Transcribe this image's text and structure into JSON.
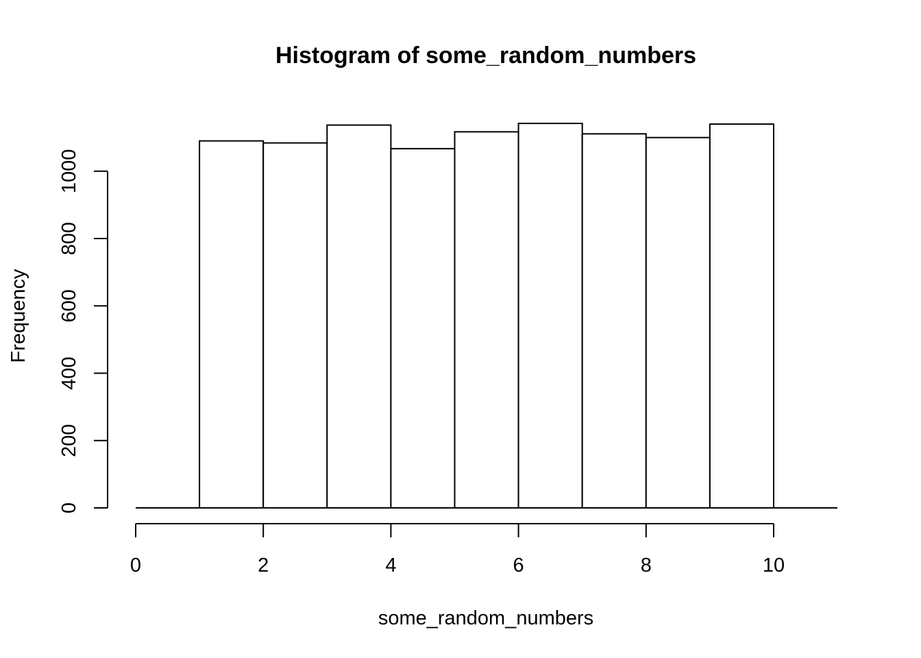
{
  "chart_data": {
    "type": "bar",
    "title": "Histogram of some_random_numbers",
    "xlabel": "some_random_numbers",
    "ylabel": "Frequency",
    "bins": [
      {
        "start": 1,
        "end": 2,
        "value": 1090
      },
      {
        "start": 2,
        "end": 3,
        "value": 1084
      },
      {
        "start": 3,
        "end": 4,
        "value": 1137
      },
      {
        "start": 4,
        "end": 5,
        "value": 1067
      },
      {
        "start": 5,
        "end": 6,
        "value": 1117
      },
      {
        "start": 6,
        "end": 7,
        "value": 1142
      },
      {
        "start": 7,
        "end": 8,
        "value": 1111
      },
      {
        "start": 8,
        "end": 9,
        "value": 1100
      },
      {
        "start": 9,
        "end": 10,
        "value": 1140
      }
    ],
    "xlim": [
      0,
      11
    ],
    "ylim": [
      0,
      1160
    ],
    "x_ticks": [
      0,
      2,
      4,
      6,
      8,
      10
    ],
    "y_ticks": [
      0,
      200,
      400,
      600,
      800,
      1000
    ],
    "x_tick_labels": [
      "0",
      "2",
      "4",
      "6",
      "8",
      "10"
    ],
    "y_tick_labels": [
      "0",
      "200",
      "400",
      "600",
      "800",
      "1000"
    ],
    "grid": false,
    "colors": {
      "bar_fill": "#ffffff",
      "bar_stroke": "#000000",
      "axis": "#000000"
    }
  }
}
